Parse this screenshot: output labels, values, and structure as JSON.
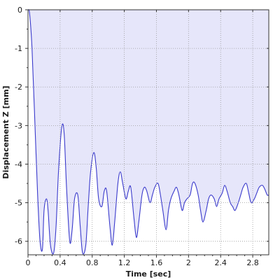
{
  "chart_data": {
    "type": "area",
    "title": "",
    "xlabel": "Time [sec]",
    "ylabel": "Displacement Z [mm]",
    "xlim": [
      0,
      3.0
    ],
    "ylim": [
      -6.35,
      0
    ],
    "x_ticks": [
      0,
      0.4,
      0.8,
      1.2,
      1.6,
      2.0,
      2.4,
      2.8
    ],
    "x_tick_labels": [
      "0",
      "0.4",
      "0.8",
      "1.2",
      "1.6",
      "2",
      "2.4",
      "2.8"
    ],
    "y_ticks": [
      0,
      -1,
      -2,
      -3,
      -4,
      -5,
      -6
    ],
    "y_tick_labels": [
      "0",
      "-1",
      "-2",
      "-3",
      "-4",
      "-5",
      "-6"
    ],
    "grid": true,
    "colors": {
      "line": "#3a3acc",
      "fill": "#e6e6fa",
      "grid": "#9a9a9a"
    },
    "series": [
      {
        "x": [
          0,
          0.02,
          0.05,
          0.08,
          0.12,
          0.15,
          0.18,
          0.2,
          0.23,
          0.25,
          0.28,
          0.32,
          0.35,
          0.38,
          0.42,
          0.45,
          0.48,
          0.52,
          0.55,
          0.58,
          0.62,
          0.65,
          0.68,
          0.72,
          0.75,
          0.78,
          0.82,
          0.85,
          0.88,
          0.92,
          0.95,
          0.98,
          1.02,
          1.05,
          1.08,
          1.12,
          1.15,
          1.18,
          1.22,
          1.25,
          1.28,
          1.32,
          1.35,
          1.38,
          1.42,
          1.45,
          1.48,
          1.52,
          1.55,
          1.58,
          1.62,
          1.65,
          1.68,
          1.72,
          1.75,
          1.78,
          1.82,
          1.85,
          1.88,
          1.92,
          1.95,
          1.98,
          2.02,
          2.05,
          2.08,
          2.12,
          2.15,
          2.18,
          2.22,
          2.25,
          2.28,
          2.32,
          2.35,
          2.38,
          2.42,
          2.45,
          2.48,
          2.52,
          2.55,
          2.58,
          2.62,
          2.65,
          2.68,
          2.72,
          2.75,
          2.78,
          2.82,
          2.85,
          2.88,
          2.92,
          2.95,
          2.98,
          3.0
        ],
        "y": [
          0,
          -0.1,
          -1.0,
          -2.6,
          -4.8,
          -6.0,
          -6.2,
          -5.2,
          -4.9,
          -5.2,
          -6.1,
          -6.3,
          -5.6,
          -4.2,
          -3.05,
          -3.2,
          -4.6,
          -6.0,
          -5.7,
          -4.9,
          -4.8,
          -5.6,
          -6.3,
          -6.1,
          -5.1,
          -4.2,
          -3.7,
          -4.1,
          -4.9,
          -5.1,
          -4.7,
          -4.7,
          -5.6,
          -6.1,
          -5.5,
          -4.5,
          -4.2,
          -4.5,
          -4.9,
          -4.7,
          -4.6,
          -5.4,
          -5.9,
          -5.5,
          -4.8,
          -4.6,
          -4.7,
          -5.0,
          -4.8,
          -4.6,
          -4.5,
          -4.8,
          -5.2,
          -5.7,
          -5.2,
          -4.9,
          -4.7,
          -4.6,
          -4.8,
          -5.2,
          -5.0,
          -4.9,
          -4.8,
          -4.5,
          -4.5,
          -4.8,
          -5.2,
          -5.5,
          -5.2,
          -4.9,
          -4.8,
          -4.9,
          -5.1,
          -4.9,
          -4.75,
          -4.55,
          -4.7,
          -5.0,
          -5.1,
          -5.2,
          -5.0,
          -4.8,
          -4.6,
          -4.5,
          -4.75,
          -5.0,
          -4.9,
          -4.75,
          -4.6,
          -4.55,
          -4.65,
          -4.8,
          -4.8
        ]
      }
    ]
  }
}
